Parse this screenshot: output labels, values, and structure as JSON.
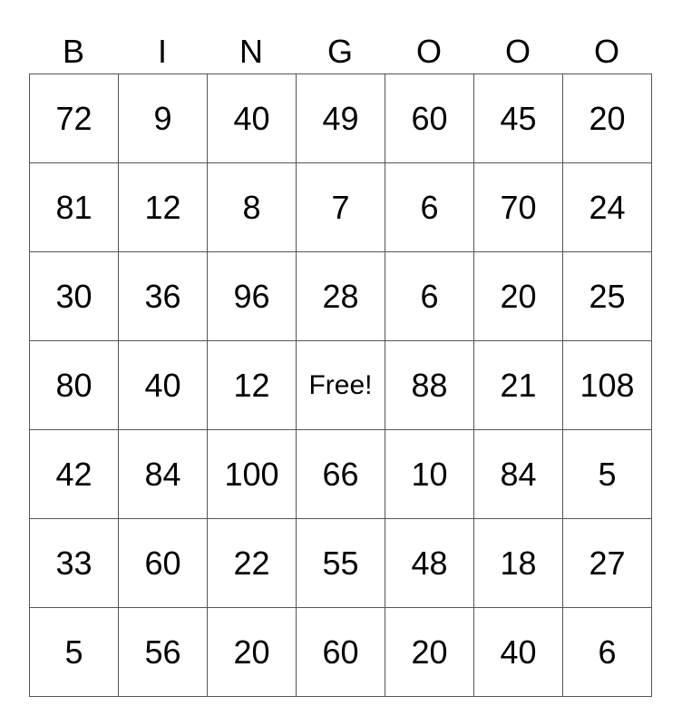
{
  "header": [
    "B",
    "I",
    "N",
    "G",
    "O",
    "O",
    "O"
  ],
  "rows": [
    [
      "72",
      "9",
      "40",
      "49",
      "60",
      "45",
      "20"
    ],
    [
      "81",
      "12",
      "8",
      "7",
      "6",
      "70",
      "24"
    ],
    [
      "30",
      "36",
      "96",
      "28",
      "6",
      "20",
      "25"
    ],
    [
      "80",
      "40",
      "12",
      "Free!",
      "88",
      "21",
      "108"
    ],
    [
      "42",
      "84",
      "100",
      "66",
      "10",
      "84",
      "5"
    ],
    [
      "33",
      "60",
      "22",
      "55",
      "48",
      "18",
      "27"
    ],
    [
      "5",
      "56",
      "20",
      "60",
      "20",
      "40",
      "6"
    ]
  ]
}
